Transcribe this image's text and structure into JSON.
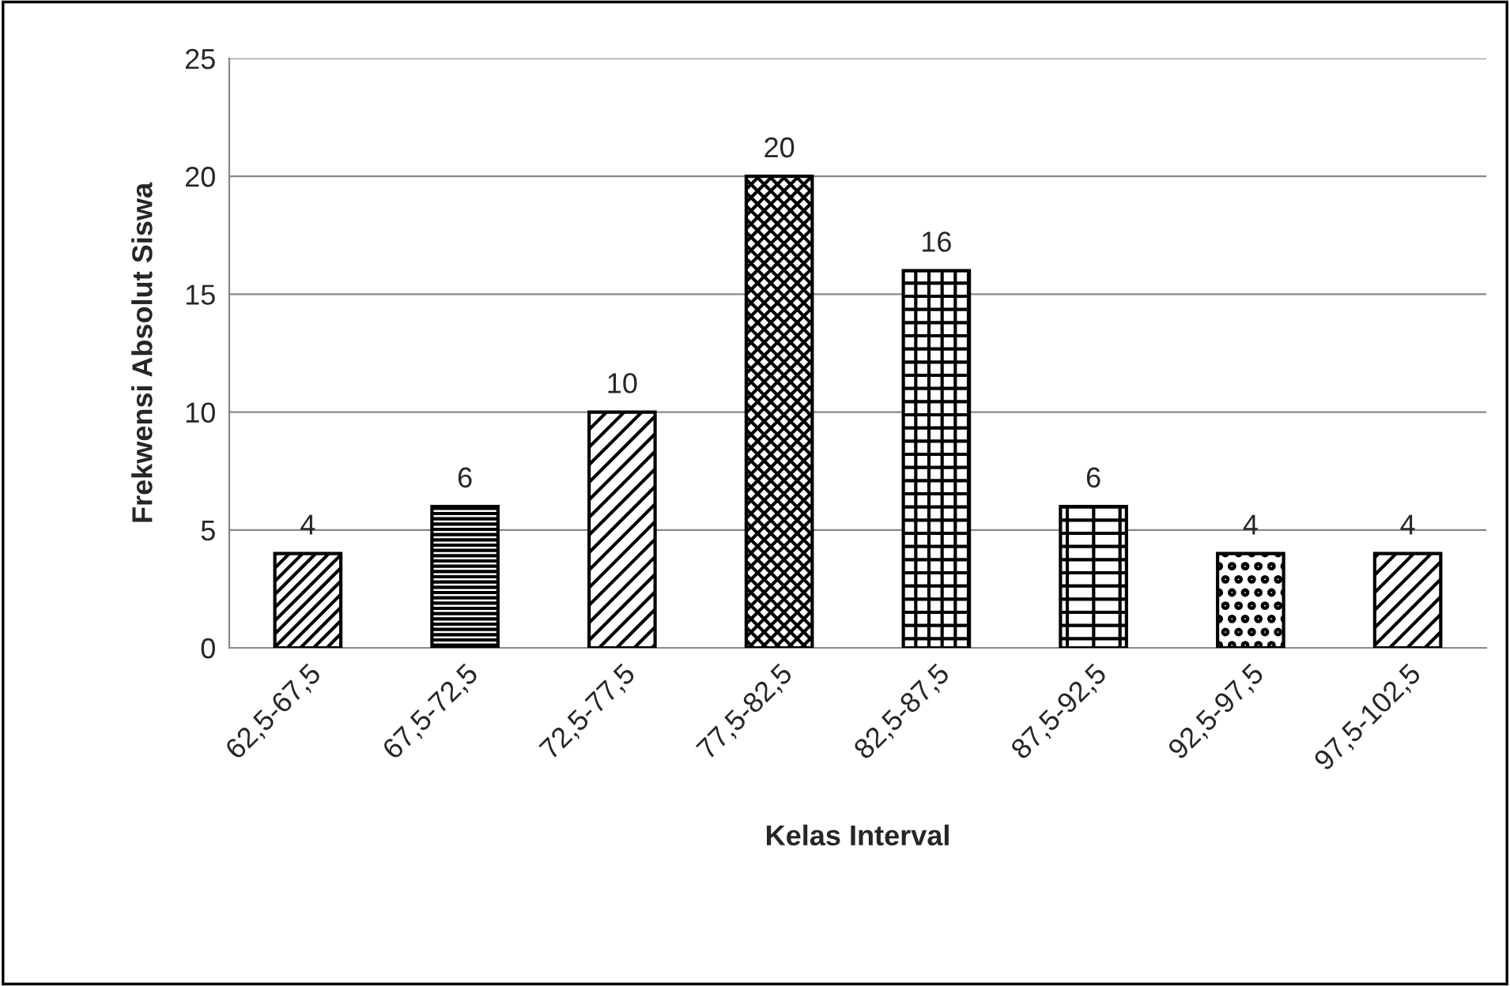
{
  "chart_data": {
    "type": "bar",
    "xlabel": "Kelas Interval",
    "ylabel": "Frekwensi Absolut Siswa",
    "categories": [
      "62,5-67,5",
      "67,5-72,5",
      "72,5-77,5",
      "77,5-82,5",
      "82,5-87,5",
      "87,5-92,5",
      "92,5-97,5",
      "97,5-102,5"
    ],
    "values": [
      4,
      6,
      10,
      20,
      16,
      6,
      4,
      4
    ],
    "color": "#000000",
    "ylim": [
      0,
      25
    ],
    "yticks": [
      0,
      5,
      10,
      15,
      20,
      25
    ],
    "grid": "y",
    "data_labels": true
  }
}
